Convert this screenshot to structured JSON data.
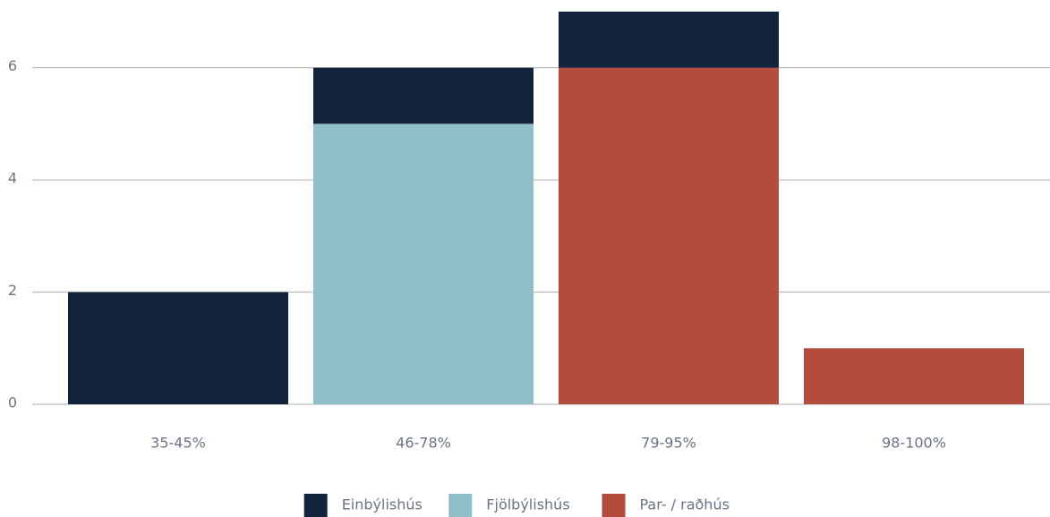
{
  "chart_data": {
    "type": "stacked_bar",
    "categories": [
      "35-45%",
      "46-78%",
      "79-95%",
      "98-100%"
    ],
    "series": [
      {
        "name": "Einbýlishús",
        "color": "#14233c",
        "values": [
          2,
          1,
          1,
          0
        ]
      },
      {
        "name": "Fjölbýlishús",
        "color": "#8fbfc6",
        "values": [
          0,
          5,
          0,
          0
        ]
      },
      {
        "name": "Par- / raðhús",
        "color": "#b34c3d",
        "values": [
          0,
          0,
          6,
          1
        ]
      }
    ],
    "ylim": [
      0,
      7
    ],
    "yticks": [
      0,
      2,
      4,
      6
    ],
    "grid": true,
    "legend": "bottom"
  }
}
